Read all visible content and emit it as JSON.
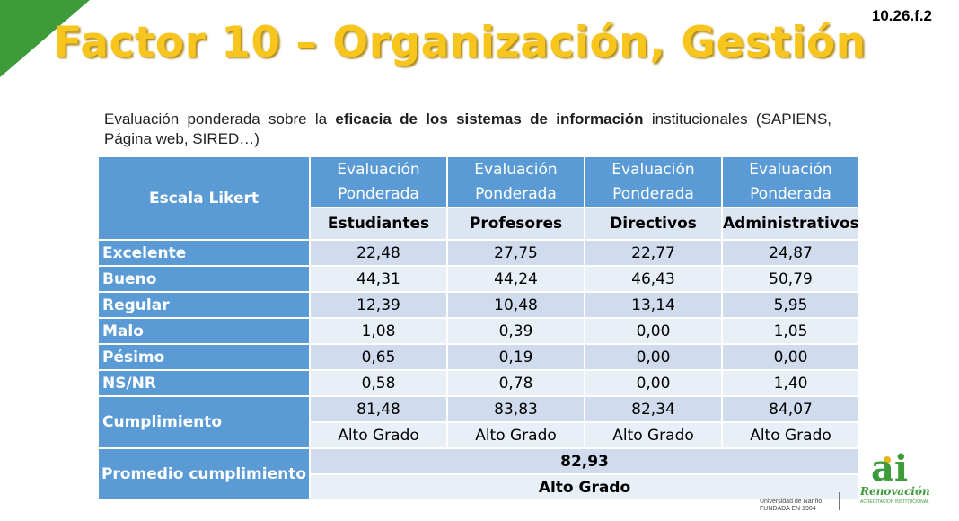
{
  "slide_code": "10.26.f.2",
  "title": "Factor 10 – Organización, Gestión",
  "subtitle": {
    "part1": "Evaluación ponderada sobre la ",
    "bold": "eficacia de los sistemas de información",
    "part2": " institucionales (SAPIENS, Página web, SIRED…)"
  },
  "table": {
    "likert_header": "Escala Likert",
    "group_header": "Evaluación Ponderada",
    "columns": [
      "Estudiantes",
      "Profesores",
      "Directivos",
      "Administrativos"
    ],
    "rows": [
      {
        "label": "Excelente",
        "values": [
          "22,48",
          "27,75",
          "22,77",
          "24,87"
        ]
      },
      {
        "label": "Bueno",
        "values": [
          "44,31",
          "44,24",
          "46,43",
          "50,79"
        ]
      },
      {
        "label": "Regular",
        "values": [
          "12,39",
          "10,48",
          "13,14",
          "5,95"
        ]
      },
      {
        "label": "Malo",
        "values": [
          "1,08",
          "0,39",
          "0,00",
          "1,05"
        ]
      },
      {
        "label": "Pésimo",
        "values": [
          "0,65",
          "0,19",
          "0,00",
          "0,00"
        ]
      },
      {
        "label": "NS/NR",
        "values": [
          "0,58",
          "0,78",
          "0,00",
          "1,40"
        ]
      }
    ],
    "cumplimiento": {
      "label": "Cumplimiento",
      "values": [
        "81,48",
        "83,83",
        "82,34",
        "84,07"
      ],
      "grades": [
        "Alto Grado",
        "Alto Grado",
        "Alto Grado",
        "Alto Grado"
      ]
    },
    "promedio": {
      "label": "Promedio cumplimiento",
      "value": "82,93",
      "grade": "Alto Grado"
    }
  },
  "footer": {
    "university": "Universidad de Nariño",
    "founded": "FUNDADA EN 1904",
    "logo_mark": "ai",
    "logo_word": "Renovación",
    "logo_sub": "ACREDITACIÓN INSTITUCIONAL"
  },
  "colors": {
    "header_blue": "#5b9bd5",
    "title_gold": "#f7c51c",
    "corner_green": "#3d9b3a"
  }
}
